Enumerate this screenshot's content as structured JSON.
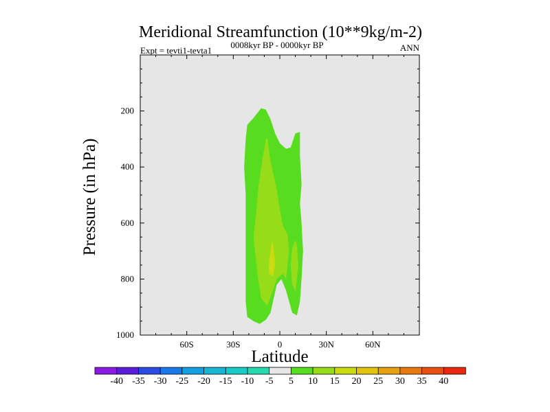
{
  "chart_data": {
    "type": "contour",
    "title": "Meridional Streamfunction (10**9kg/m-2)",
    "subtitle_left": "Expt = tevti1-tevta1",
    "subtitle_center": "0008kyr BP - 0000kyr BP",
    "subtitle_right": "ANN",
    "xlabel": "Latitude",
    "ylabel": "Pressure (in hPa)",
    "xlim": [
      -90,
      90
    ],
    "ylim": [
      0,
      1000
    ],
    "x_ticks": [
      {
        "value": -60,
        "label": "60S"
      },
      {
        "value": -30,
        "label": "30S"
      },
      {
        "value": 0,
        "label": "0"
      },
      {
        "value": 30,
        "label": "30N"
      },
      {
        "value": 60,
        "label": "60N"
      }
    ],
    "y_ticks": [
      {
        "value": 200,
        "label": "200"
      },
      {
        "value": 400,
        "label": "400"
      },
      {
        "value": 600,
        "label": "600"
      },
      {
        "value": 800,
        "label": "800"
      },
      {
        "value": 1000,
        "label": "1000"
      }
    ],
    "background_color": "#e6e6e6",
    "colorbar": {
      "labels": [
        "-40",
        "-35",
        "-30",
        "-25",
        "-20",
        "-15",
        "-10",
        "-5",
        "5",
        "10",
        "15",
        "20",
        "25",
        "30",
        "35",
        "40"
      ],
      "colors": [
        "#8a1ae0",
        "#5a1ed8",
        "#2a4ce0",
        "#1a78e8",
        "#14a0e0",
        "#16b6d4",
        "#18cac8",
        "#24d8b0",
        "#e6e6e6",
        "#58dc20",
        "#96dc18",
        "#c8dc10",
        "#e2c410",
        "#e6a010",
        "#e67a10",
        "#e65010",
        "#e62810"
      ]
    },
    "filled_regions": [
      {
        "level": "5 to 10",
        "color": "#58dc20",
        "points": [
          [
            -13,
            960
          ],
          [
            -17,
            950
          ],
          [
            -21,
            935
          ],
          [
            -22,
            880
          ],
          [
            -22,
            800
          ],
          [
            -22,
            700
          ],
          [
            -22,
            600
          ],
          [
            -22,
            500
          ],
          [
            -23,
            400
          ],
          [
            -22,
            300
          ],
          [
            -21,
            250
          ],
          [
            -17,
            225
          ],
          [
            -12,
            190
          ],
          [
            -9,
            195
          ],
          [
            -6,
            230
          ],
          [
            -3,
            280
          ],
          [
            0,
            315
          ],
          [
            4,
            335
          ],
          [
            7,
            330
          ],
          [
            10,
            280
          ],
          [
            13,
            275
          ],
          [
            13,
            360
          ],
          [
            14,
            460
          ],
          [
            13,
            530
          ],
          [
            14,
            600
          ],
          [
            15,
            700
          ],
          [
            14,
            800
          ],
          [
            13,
            880
          ],
          [
            11,
            930
          ],
          [
            8,
            920
          ],
          [
            6,
            880
          ],
          [
            4,
            840
          ],
          [
            1,
            800
          ],
          [
            -2,
            820
          ],
          [
            -4,
            870
          ],
          [
            -6,
            920
          ],
          [
            -9,
            945
          ]
        ]
      },
      {
        "level": "10 to 15",
        "color": "#96dc18",
        "points": [
          [
            -8,
            895
          ],
          [
            -12,
            870
          ],
          [
            -14,
            800
          ],
          [
            -15,
            750
          ],
          [
            -16,
            700
          ],
          [
            -17,
            650
          ],
          [
            -16,
            600
          ],
          [
            -15,
            550
          ],
          [
            -14,
            480
          ],
          [
            -12,
            400
          ],
          [
            -9,
            300
          ],
          [
            -8,
            300
          ],
          [
            -6,
            380
          ],
          [
            -4,
            430
          ],
          [
            -2,
            480
          ],
          [
            0,
            550
          ],
          [
            2,
            610
          ],
          [
            5,
            640
          ],
          [
            6,
            700
          ],
          [
            4,
            800
          ],
          [
            2,
            780
          ],
          [
            0,
            790
          ],
          [
            -2,
            800
          ],
          [
            -5,
            850
          ]
        ]
      },
      {
        "level": "10 to 15",
        "color": "#96dc18",
        "points": [
          [
            10,
            845
          ],
          [
            8,
            820
          ],
          [
            7,
            750
          ],
          [
            8,
            690
          ],
          [
            10,
            660
          ],
          [
            11,
            680
          ],
          [
            12,
            750
          ],
          [
            11,
            800
          ]
        ]
      },
      {
        "level": "15 to 20",
        "color": "#c8dc10",
        "points": [
          [
            -5,
            790
          ],
          [
            -7,
            780
          ],
          [
            -7,
            740
          ],
          [
            -6,
            700
          ],
          [
            -5,
            660
          ],
          [
            -4,
            690
          ],
          [
            -3,
            750
          ],
          [
            -4,
            780
          ]
        ]
      }
    ]
  }
}
